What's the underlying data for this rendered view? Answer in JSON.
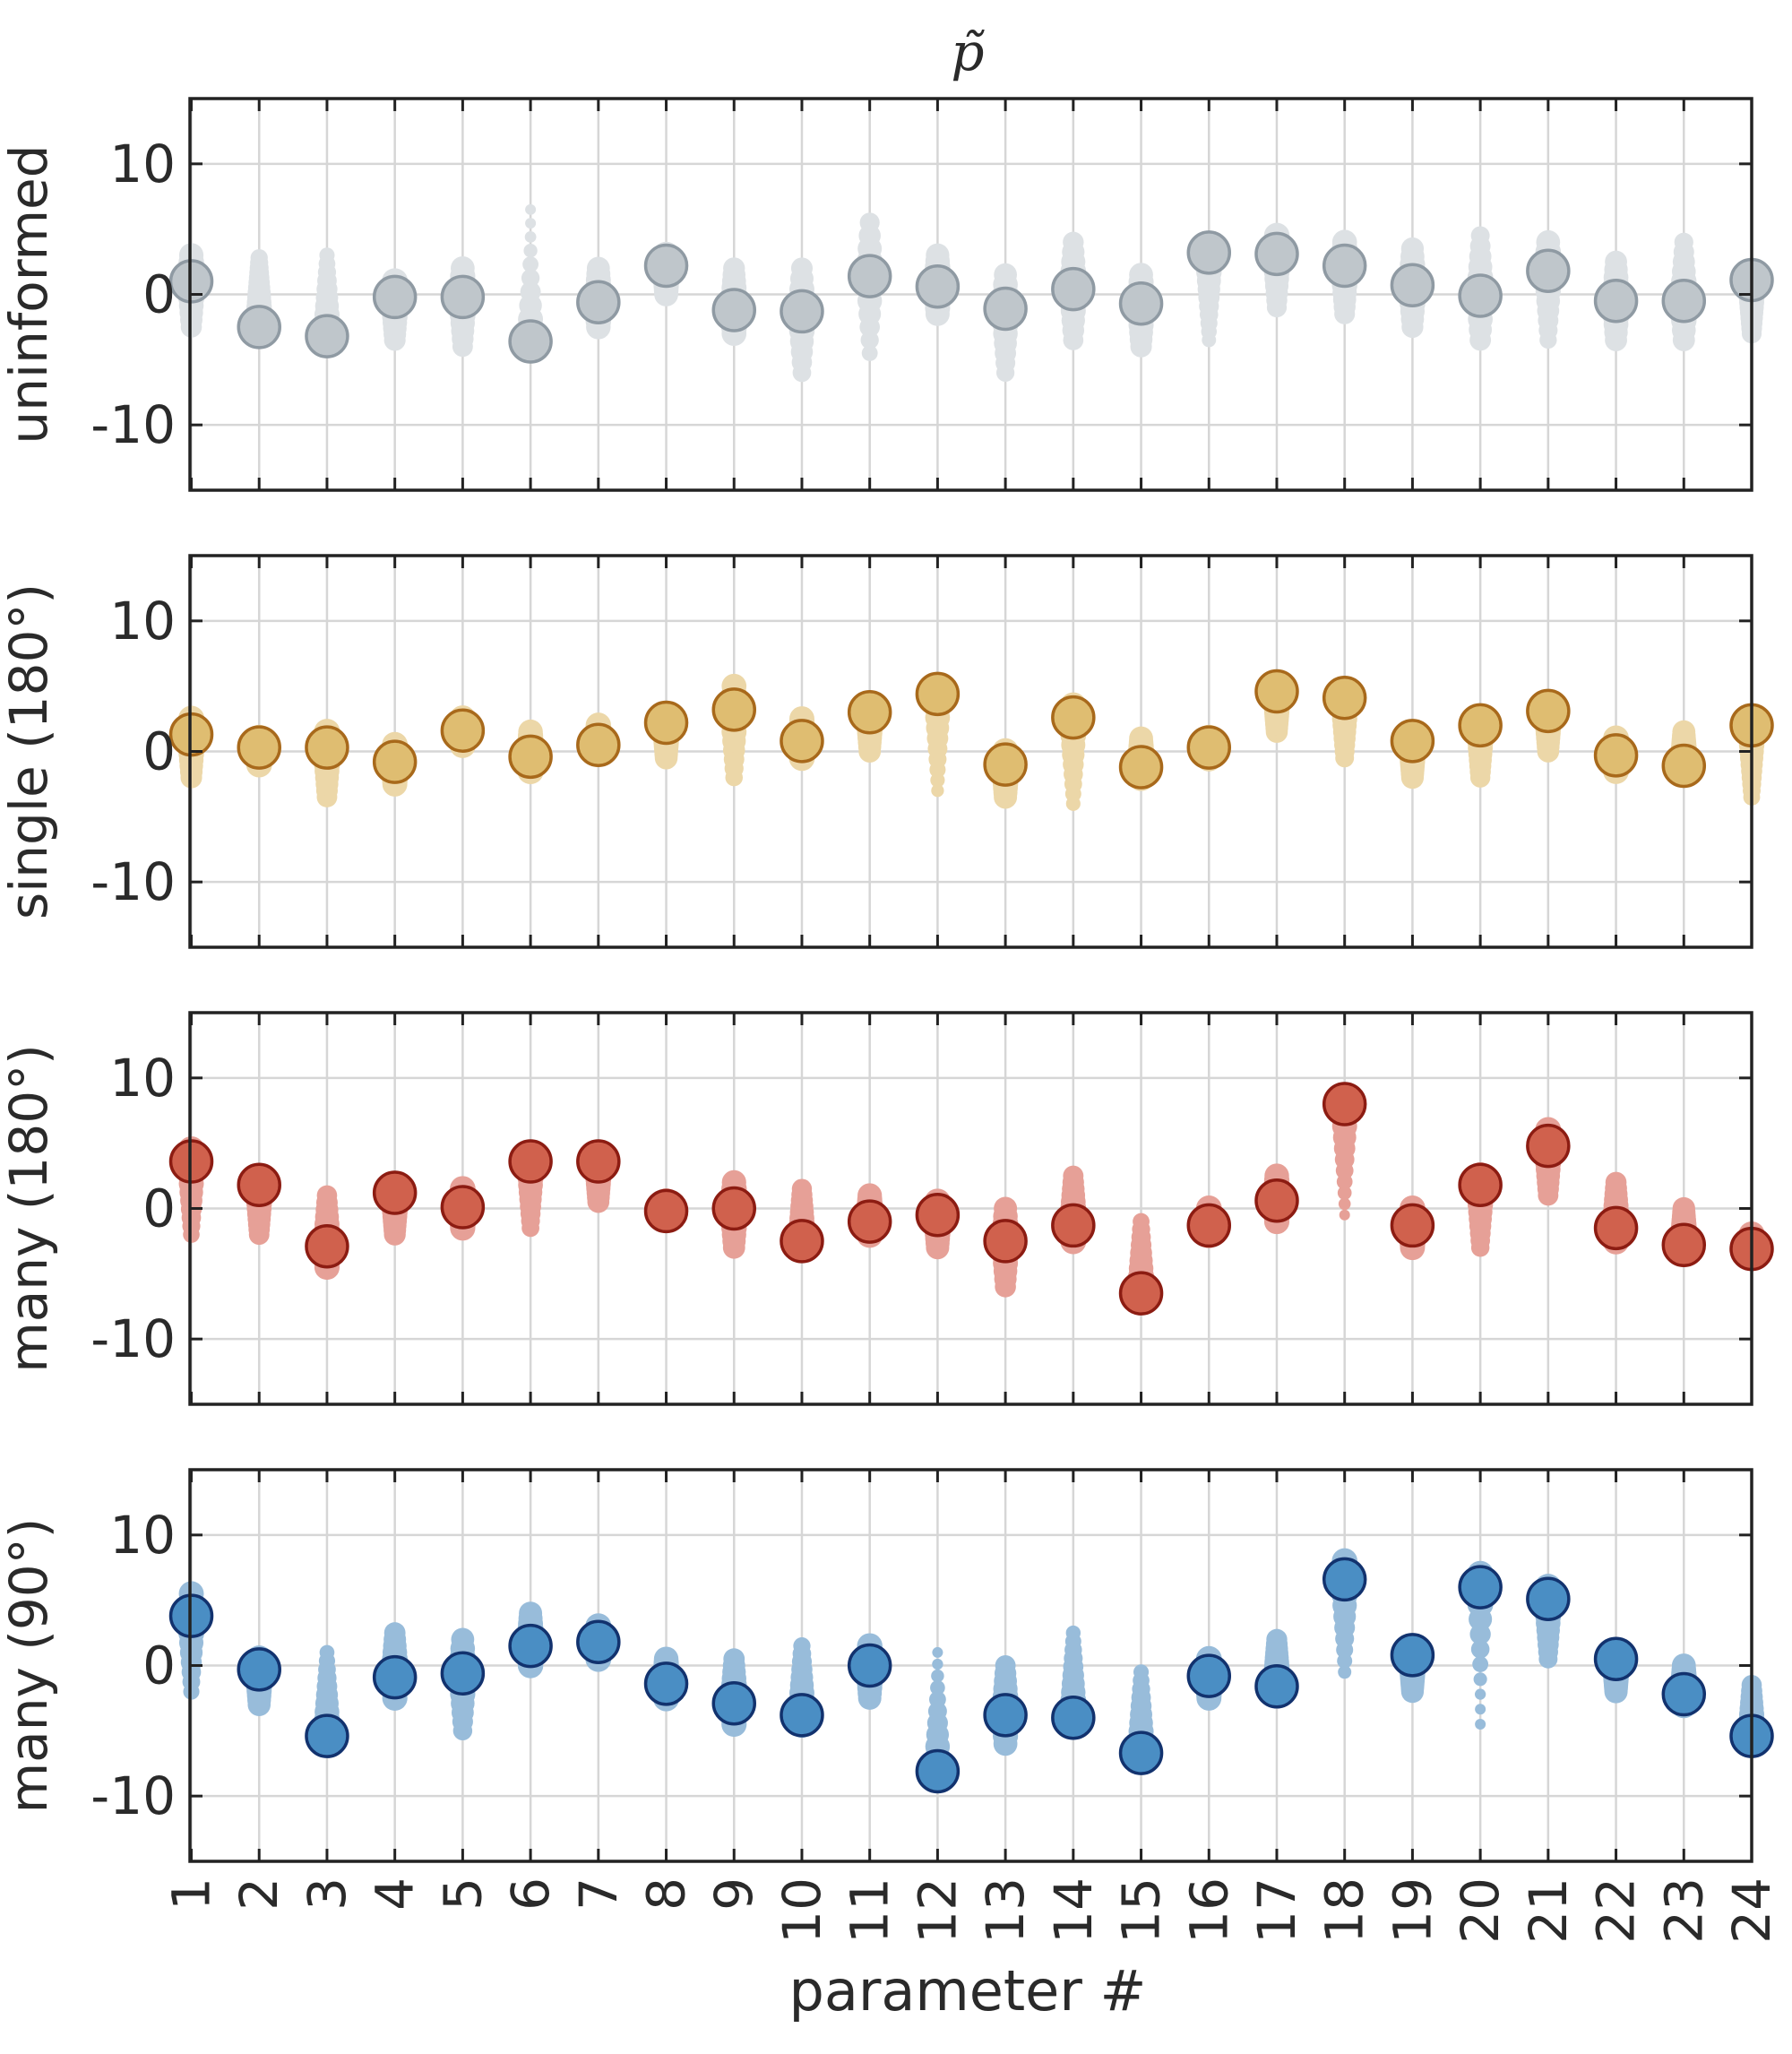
{
  "title": "p̃",
  "xlabel": "parameter #",
  "chart_data": {
    "type": "scatter",
    "title": "p̃",
    "xlabel": "parameter #",
    "x": [
      1,
      2,
      3,
      4,
      5,
      6,
      7,
      8,
      9,
      10,
      11,
      12,
      13,
      14,
      15,
      16,
      17,
      18,
      19,
      20,
      21,
      22,
      23,
      24
    ],
    "xtick_labels": [
      "1",
      "2",
      "3",
      "4",
      "5",
      "6",
      "7",
      "8",
      "9",
      "10",
      "11",
      "12",
      "13",
      "14",
      "15",
      "16",
      "17",
      "18",
      "19",
      "20",
      "21",
      "22",
      "23",
      "24"
    ],
    "ylim": [
      -15,
      15
    ],
    "yticks": [
      -10,
      0,
      10
    ],
    "ytick_labels": [
      "-10",
      "0",
      "10"
    ],
    "grid": true,
    "panels": [
      {
        "name": "uninformed",
        "ylabel": "uninformed",
        "fill": "#bfc6cb",
        "stroke": "#8f9aa3",
        "cloud": "#dde1e4",
        "means": [
          1.0,
          -2.5,
          -3.2,
          -0.2,
          -0.2,
          -3.6,
          -0.6,
          2.2,
          -1.2,
          -1.3,
          1.4,
          0.6,
          -1.1,
          0.4,
          -0.7,
          3.2,
          3.1,
          2.2,
          0.7,
          -0.1,
          1.8,
          -0.5,
          -0.5,
          1.1
        ],
        "spread": [
          [
            -2.5,
            3.0
          ],
          [
            -1.0,
            2.8
          ],
          [
            -3.5,
            3.0
          ],
          [
            -3.5,
            1.0
          ],
          [
            -4.0,
            2.0
          ],
          [
            -4.0,
            6.5
          ],
          [
            -2.5,
            2.0
          ],
          [
            0.0,
            3.0
          ],
          [
            -3.0,
            2.0
          ],
          [
            -6.0,
            2.0
          ],
          [
            -4.5,
            5.5
          ],
          [
            -1.5,
            3.0
          ],
          [
            -6.0,
            1.5
          ],
          [
            -3.5,
            4.0
          ],
          [
            -4.0,
            1.5
          ],
          [
            -3.5,
            3.0
          ],
          [
            -1.0,
            4.5
          ],
          [
            -1.5,
            4.0
          ],
          [
            -2.5,
            3.5
          ],
          [
            -3.5,
            4.5
          ],
          [
            -3.5,
            4.0
          ],
          [
            -3.5,
            2.5
          ],
          [
            -3.5,
            4.0
          ],
          [
            -3.0,
            1.0
          ]
        ]
      },
      {
        "name": "single (180°)",
        "ylabel": "single (180°)",
        "fill": "#dfbd71",
        "stroke": "#a8691b",
        "cloud": "#ecd7a8",
        "means": [
          1.3,
          0.3,
          0.3,
          -0.8,
          1.6,
          -0.4,
          0.5,
          2.2,
          3.2,
          0.8,
          3.0,
          4.4,
          -1.0,
          2.6,
          -1.2,
          0.3,
          4.6,
          4.1,
          0.8,
          2.0,
          3.1,
          -0.3,
          -1.1,
          2.0
        ],
        "spread": [
          [
            -2.0,
            2.5
          ],
          [
            -1.0,
            1.0
          ],
          [
            -3.5,
            1.5
          ],
          [
            -2.5,
            0.5
          ],
          [
            0.5,
            2.5
          ],
          [
            -1.5,
            1.5
          ],
          [
            0.0,
            2.0
          ],
          [
            -0.5,
            2.5
          ],
          [
            -2.0,
            5.0
          ],
          [
            -0.5,
            2.5
          ],
          [
            0.0,
            3.5
          ],
          [
            -3.0,
            5.0
          ],
          [
            -3.5,
            0.0
          ],
          [
            -4.0,
            3.5
          ],
          [
            -2.0,
            1.0
          ],
          [
            -0.5,
            1.0
          ],
          [
            1.5,
            4.5
          ],
          [
            -0.5,
            4.5
          ],
          [
            -2.0,
            1.0
          ],
          [
            -2.0,
            2.5
          ],
          [
            0.0,
            3.5
          ],
          [
            -1.5,
            1.0
          ],
          [
            -1.5,
            1.5
          ],
          [
            -3.5,
            1.5
          ]
        ]
      },
      {
        "name": "many (180°)",
        "ylabel": "many (180°)",
        "fill": "#d0614d",
        "stroke": "#8c1c12",
        "cloud": "#e6a097",
        "means": [
          3.6,
          1.8,
          -2.9,
          1.2,
          0.1,
          3.6,
          3.6,
          -0.2,
          0.0,
          -2.5,
          -1.0,
          -0.5,
          -2.5,
          -1.3,
          -6.5,
          -1.3,
          0.6,
          8.0,
          -1.3,
          1.8,
          4.8,
          -1.5,
          -2.8,
          -3.1
        ],
        "spread": [
          [
            -2.0,
            4.5
          ],
          [
            -2.0,
            2.0
          ],
          [
            -4.5,
            1.0
          ],
          [
            -2.0,
            1.5
          ],
          [
            -1.5,
            1.5
          ],
          [
            -1.5,
            4.0
          ],
          [
            0.5,
            4.0
          ],
          [
            -0.5,
            0.5
          ],
          [
            -3.0,
            2.0
          ],
          [
            -3.0,
            1.5
          ],
          [
            -2.0,
            1.0
          ],
          [
            -3.0,
            0.5
          ],
          [
            -6.0,
            0.0
          ],
          [
            -2.5,
            2.5
          ],
          [
            -7.0,
            -1.0
          ],
          [
            -2.0,
            0.0
          ],
          [
            -1.0,
            2.5
          ],
          [
            -0.5,
            8.0
          ],
          [
            -3.0,
            0.0
          ],
          [
            -3.0,
            2.5
          ],
          [
            1.0,
            6.0
          ],
          [
            -2.5,
            2.0
          ],
          [
            -3.0,
            0.0
          ],
          [
            -3.5,
            -2.0
          ]
        ]
      },
      {
        "name": "many (90°)",
        "ylabel": "many (90°)",
        "fill": "#4a8ec4",
        "stroke": "#12326e",
        "cloud": "#98bcda",
        "means": [
          3.8,
          -0.3,
          -5.4,
          -0.9,
          -0.6,
          1.5,
          1.8,
          -1.4,
          -2.9,
          -3.8,
          0.0,
          -8.1,
          -3.8,
          -4.0,
          -6.7,
          -0.8,
          -1.6,
          6.6,
          0.8,
          6.0,
          5.1,
          0.5,
          -2.2,
          -5.4
        ],
        "spread": [
          [
            -2.0,
            5.5
          ],
          [
            -3.0,
            0.5
          ],
          [
            -5.5,
            1.0
          ],
          [
            -2.5,
            2.5
          ],
          [
            -5.0,
            2.0
          ],
          [
            0.0,
            4.0
          ],
          [
            0.5,
            3.0
          ],
          [
            -2.5,
            0.5
          ],
          [
            -4.5,
            0.5
          ],
          [
            -4.5,
            1.5
          ],
          [
            -2.5,
            1.5
          ],
          [
            -8.0,
            1.0
          ],
          [
            -6.0,
            0.0
          ],
          [
            -4.0,
            2.5
          ],
          [
            -7.0,
            -0.5
          ],
          [
            -2.5,
            0.5
          ],
          [
            -1.5,
            2.0
          ],
          [
            -0.5,
            8.0
          ],
          [
            -2.0,
            0.5
          ],
          [
            -4.5,
            7.0
          ],
          [
            0.5,
            6.0
          ],
          [
            -2.0,
            0.5
          ],
          [
            -3.0,
            0.0
          ],
          [
            -6.0,
            -1.5
          ]
        ]
      }
    ]
  }
}
